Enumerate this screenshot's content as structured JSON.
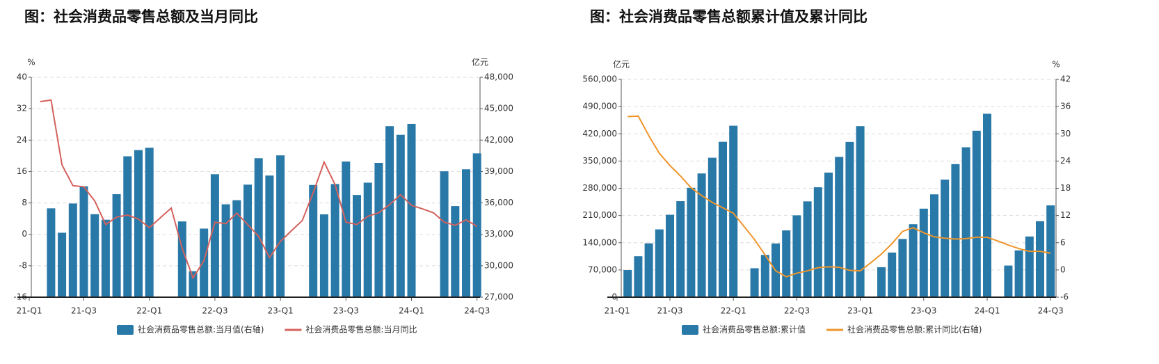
{
  "chart_data": [
    {
      "type": "combo",
      "title": "图：社会消费品零售总额及当月同比",
      "ylabel": "%",
      "y2label": "亿元",
      "grid": true,
      "categories": [
        "21-Q1",
        null,
        null,
        null,
        null,
        "21-Q3",
        null,
        null,
        null,
        null,
        null,
        "22-Q1",
        null,
        null,
        null,
        null,
        null,
        "22-Q3",
        null,
        null,
        null,
        null,
        null,
        "23-Q1",
        null,
        null,
        null,
        null,
        null,
        "23-Q3",
        null,
        null,
        null,
        null,
        null,
        "24-Q1",
        null,
        null,
        null,
        null,
        null,
        "24-Q3"
      ],
      "ylim": [
        -16,
        40
      ],
      "yticks": [
        -16,
        -8,
        0,
        8,
        16,
        24,
        32,
        40
      ],
      "y2lim": [
        27000,
        48000
      ],
      "y2ticks": [
        {
          "value": 27000,
          "label": "27,000"
        },
        {
          "value": 30000,
          "label": "30,000"
        },
        {
          "value": 33000,
          "label": "33,000"
        },
        {
          "value": 36000,
          "label": "36,000"
        },
        {
          "value": 39000,
          "label": "39,000"
        },
        {
          "value": 42000,
          "label": "42,000"
        },
        {
          "value": 45000,
          "label": "45,000"
        },
        {
          "value": 48000,
          "label": "48,000"
        }
      ],
      "series": [
        {
          "name": "社会消费品零售总额:当月值(右轴)",
          "type": "bar",
          "axis": "y2",
          "color": "#2878a8",
          "values": [
            null,
            null,
            35484,
            33153,
            35945,
            37586,
            34925,
            34395,
            36833,
            40454,
            41043,
            41269,
            null,
            null,
            34233,
            29483,
            33547,
            38742,
            35870,
            36258,
            37745,
            40271,
            38615,
            40542,
            null,
            null,
            37715,
            34910,
            37803,
            39951,
            36761,
            37933,
            39826,
            43333,
            42505,
            43550,
            null,
            null,
            39020,
            35699,
            39211,
            40732
          ]
        },
        {
          "name": "社会消费品零售总额:当月同比",
          "type": "line",
          "axis": "y",
          "color": "#d4615c",
          "values": [
            null,
            33.8,
            34.2,
            17.7,
            12.4,
            12.1,
            8.5,
            2.5,
            4.4,
            4.9,
            3.9,
            1.7,
            4.2,
            6.7,
            -3.5,
            -11.1,
            -6.7,
            3.1,
            2.7,
            5.4,
            2.5,
            -0.5,
            -5.9,
            -1.8,
            0.9,
            3.5,
            10.6,
            18.4,
            12.7,
            3.1,
            2.5,
            4.6,
            5.5,
            7.6,
            10.1,
            7.4,
            6.5,
            5.5,
            3.1,
            2.3,
            3.7,
            2.0
          ]
        }
      ]
    },
    {
      "type": "combo",
      "title": "图：社会消费品零售总额累计值及累计同比",
      "ylabel": "亿元",
      "y2label": "%",
      "grid": true,
      "categories": [
        "21-Q1",
        null,
        null,
        null,
        null,
        "21-Q3",
        null,
        null,
        null,
        null,
        null,
        "22-Q1",
        null,
        null,
        null,
        null,
        null,
        "22-Q3",
        null,
        null,
        null,
        null,
        null,
        "23-Q1",
        null,
        null,
        null,
        null,
        null,
        "23-Q3",
        null,
        null,
        null,
        null,
        null,
        "24-Q1",
        null,
        null,
        null,
        null,
        null,
        "24-Q3"
      ],
      "ylim": [
        0,
        560000
      ],
      "yticks": [
        0,
        {
          "value": 70000,
          "label": "70,000"
        },
        {
          "value": 140000,
          "label": "140,000"
        },
        {
          "value": 210000,
          "label": "210,000"
        },
        {
          "value": 280000,
          "label": "280,000"
        },
        {
          "value": 350000,
          "label": "350,000"
        },
        {
          "value": 420000,
          "label": "420,000"
        },
        {
          "value": 490000,
          "label": "490,000"
        },
        {
          "value": 560000,
          "label": "560,000"
        }
      ],
      "y2lim": [
        -6,
        42
      ],
      "y2ticks": [
        -6,
        0,
        6,
        12,
        18,
        24,
        30,
        36,
        42
      ],
      "series": [
        {
          "name": "社会消费品零售总额:累计值",
          "type": "bar",
          "axis": "y",
          "color": "#2878a8",
          "values": [
            null,
            69737,
            105221,
            138373,
            174319,
            211904,
            246829,
            281224,
            318057,
            358511,
            399554,
            440823,
            null,
            74426,
            108659,
            138142,
            171689,
            210432,
            246302,
            282560,
            320305,
            360575,
            399190,
            439733,
            null,
            77067,
            114782,
            149692,
            187495,
            227588,
            264348,
            302281,
            342107,
            385440,
            427945,
            471495,
            null,
            81307,
            120327,
            156026,
            195237,
            235969
          ]
        },
        {
          "name": "社会消费品零售总额:累计同比(右轴)",
          "type": "line",
          "axis": "y2",
          "color": "#ef952c",
          "values": [
            null,
            33.8,
            33.9,
            29.6,
            25.7,
            23.0,
            20.7,
            18.1,
            16.4,
            14.9,
            13.7,
            12.5,
            9.6,
            6.7,
            3.3,
            -0.2,
            -1.5,
            -0.7,
            -0.2,
            0.5,
            0.7,
            0.6,
            -0.1,
            -0.2,
            1.6,
            3.5,
            5.8,
            8.5,
            9.3,
            8.2,
            7.3,
            7.0,
            6.8,
            6.9,
            7.2,
            7.2,
            6.4,
            5.5,
            4.7,
            4.1,
            4.1,
            3.7
          ]
        }
      ]
    }
  ]
}
